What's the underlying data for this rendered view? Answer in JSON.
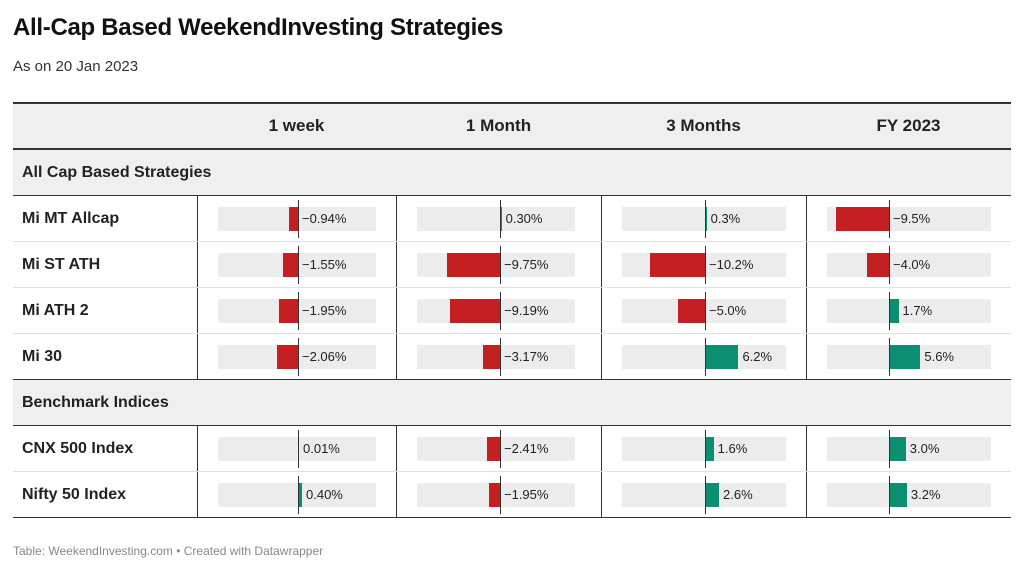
{
  "title": "All-Cap Based WeekendInvesting Strategies",
  "subtitle": "As on 20 Jan 2023",
  "footer": "Table: WeekendInvesting.com • Created with Datawrapper",
  "colors": {
    "negative": "#c42021",
    "positive": "#0b8e72"
  },
  "chart_data": {
    "type": "table",
    "columns": [
      "1 week",
      "1 Month",
      "3 Months",
      "FY 2023"
    ],
    "groups": [
      {
        "name": "All Cap Based Strategies",
        "rows": [
          {
            "name": "Mi MT Allcap",
            "values": [
              -0.94,
              0.3,
              0.3,
              -9.5
            ],
            "labels": [
              "−0.94%",
              "0.30%",
              "0.3%",
              "−9.5%"
            ]
          },
          {
            "name": "Mi ST ATH",
            "values": [
              -1.55,
              -9.75,
              -10.2,
              -4.0
            ],
            "labels": [
              "−1.55%",
              "−9.75%",
              "−10.2%",
              "−4.0%"
            ]
          },
          {
            "name": "Mi ATH 2",
            "values": [
              -1.95,
              -9.19,
              -5.0,
              1.7
            ],
            "labels": [
              "−1.95%",
              "−9.19%",
              "−5.0%",
              "1.7%"
            ]
          },
          {
            "name": "Mi 30",
            "values": [
              -2.06,
              -3.17,
              6.2,
              5.6
            ],
            "labels": [
              "−2.06%",
              "−3.17%",
              "6.2%",
              "5.6%"
            ]
          }
        ]
      },
      {
        "name": "Benchmark Indices",
        "rows": [
          {
            "name": "CNX 500 Index",
            "values": [
              0.01,
              -2.41,
              1.6,
              3.0
            ],
            "labels": [
              "0.01%",
              "−2.41%",
              "1.6%",
              "3.0%"
            ]
          },
          {
            "name": "Nifty 50 Index",
            "values": [
              0.4,
              -1.95,
              2.6,
              3.2
            ],
            "labels": [
              "0.40%",
              "−1.95%",
              "2.6%",
              "3.2%"
            ]
          }
        ]
      }
    ]
  }
}
